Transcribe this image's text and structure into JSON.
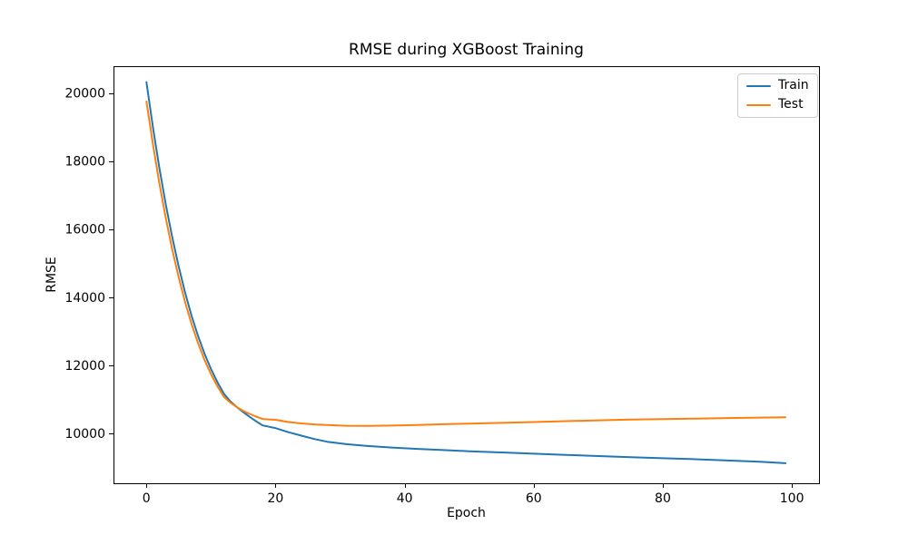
{
  "chart_data": {
    "type": "line",
    "title": "RMSE during XGBoost Training",
    "xlabel": "Epoch",
    "ylabel": "RMSE",
    "xlim": [
      -5.1,
      104.2
    ],
    "ylim": [
      8530,
      20790
    ],
    "xticks": [
      0,
      20,
      40,
      60,
      80,
      100
    ],
    "yticks": [
      10000,
      12000,
      14000,
      16000,
      18000,
      20000
    ],
    "grid": false,
    "background": "#ffffff",
    "axis_color": "#000000",
    "legend": {
      "position": "upper right",
      "entries": [
        "Train",
        "Test"
      ]
    },
    "x": [
      0,
      1,
      2,
      3,
      4,
      5,
      6,
      7,
      8,
      9,
      10,
      11,
      12,
      13,
      14,
      15,
      16,
      17,
      18,
      19,
      20,
      22,
      24,
      26,
      28,
      31,
      34,
      38,
      42,
      46,
      50,
      55,
      60,
      65,
      70,
      75,
      80,
      85,
      90,
      95,
      99
    ],
    "series": [
      {
        "name": "Train",
        "color": "#1f77b4",
        "values": [
          20320,
          19000,
          17800,
          16720,
          15760,
          14900,
          14130,
          13450,
          12860,
          12340,
          11890,
          11500,
          11160,
          10940,
          10770,
          10620,
          10480,
          10350,
          10230,
          10190,
          10150,
          10030,
          9930,
          9830,
          9750,
          9680,
          9630,
          9580,
          9540,
          9505,
          9470,
          9435,
          9400,
          9365,
          9330,
          9295,
          9265,
          9235,
          9200,
          9165,
          9120
        ]
      },
      {
        "name": "Test",
        "color": "#ff7f0e",
        "values": [
          19750,
          18500,
          17350,
          16320,
          15400,
          14580,
          13850,
          13210,
          12650,
          12160,
          11740,
          11380,
          11070,
          10900,
          10770,
          10660,
          10570,
          10490,
          10420,
          10405,
          10395,
          10330,
          10290,
          10260,
          10240,
          10220,
          10215,
          10225,
          10245,
          10265,
          10285,
          10305,
          10330,
          10355,
          10380,
          10400,
          10415,
          10430,
          10445,
          10460,
          10470
        ]
      }
    ]
  }
}
